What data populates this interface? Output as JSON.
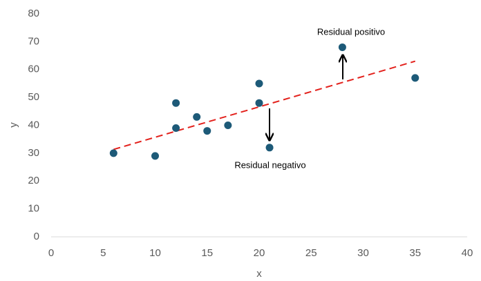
{
  "chart_data": {
    "type": "scatter",
    "x": [
      6,
      10,
      12,
      12,
      14,
      15,
      17,
      20,
      20,
      21,
      28,
      35
    ],
    "values": [
      30,
      29,
      48,
      39,
      43,
      38,
      40,
      55,
      48,
      32,
      68,
      57
    ],
    "color": "#1d5a78",
    "trendline": {
      "x": [
        6,
        35
      ],
      "values": [
        31.35,
        63.0
      ],
      "color": "#e3211c",
      "dashed": true
    },
    "xlabel": "x",
    "ylabel": "y",
    "xlim": [
      0,
      40
    ],
    "xticks": [
      0,
      5,
      10,
      15,
      20,
      25,
      30,
      35,
      40
    ],
    "ylim": [
      0,
      80
    ],
    "yticks": [
      0,
      10,
      20,
      30,
      40,
      50,
      60,
      70,
      80
    ],
    "grid": false,
    "annotations": [
      "Residual positivo",
      "Residual negativo"
    ]
  }
}
